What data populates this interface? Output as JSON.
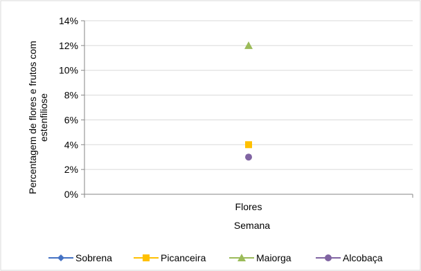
{
  "chart_data": {
    "type": "scatter",
    "categories": [
      "Flores"
    ],
    "xlabel": "Semana",
    "ylabel_lines": [
      "Percentagem de flores e frutos com",
      "estenfiliose"
    ],
    "ylim": [
      0,
      14
    ],
    "yticks": [
      "0%",
      "2%",
      "4%",
      "6%",
      "8%",
      "10%",
      "12%",
      "14%"
    ],
    "grid": true,
    "legend_position": "bottom",
    "series": [
      {
        "name": "Sobrena",
        "values": [
          null
        ],
        "color": "#4472C4",
        "marker": "diamond"
      },
      {
        "name": "Picanceira",
        "values": [
          4
        ],
        "color": "#FFC000",
        "marker": "square"
      },
      {
        "name": "Maiorga",
        "values": [
          12
        ],
        "color": "#9BBB59",
        "marker": "triangle"
      },
      {
        "name": "Alcobaça",
        "values": [
          3
        ],
        "color": "#8064A2",
        "marker": "circle"
      }
    ]
  }
}
